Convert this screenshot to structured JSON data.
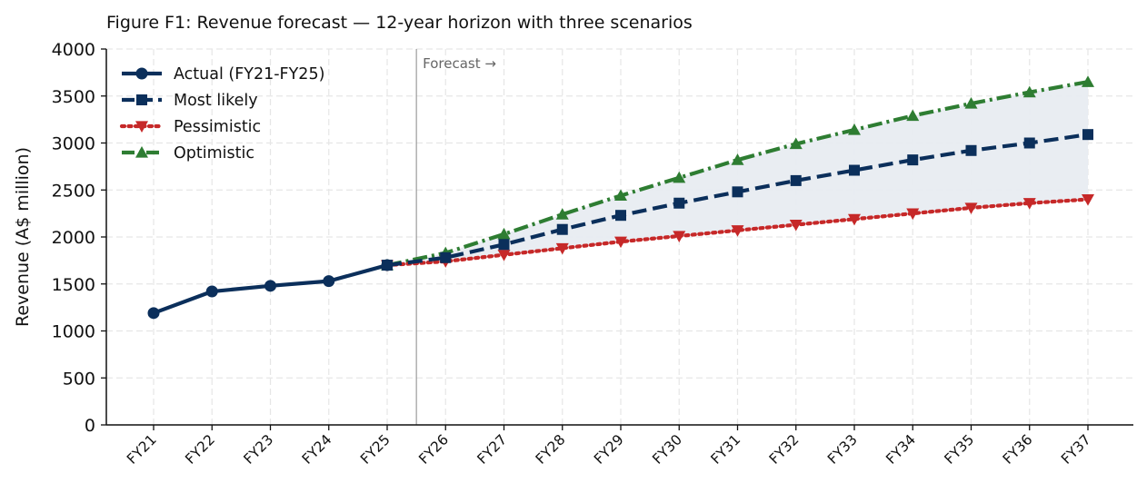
{
  "chart_data": {
    "type": "line",
    "title": "Figure F1: Revenue forecast — 12-year horizon with three scenarios",
    "ylabel": "Revenue (A$ million)",
    "xlabel": "",
    "ylim": [
      0,
      4000
    ],
    "yticks": [
      0,
      500,
      1000,
      1500,
      2000,
      2500,
      3000,
      3500,
      4000
    ],
    "categories": [
      "FY21",
      "FY22",
      "FY23",
      "FY24",
      "FY25",
      "FY26",
      "FY27",
      "FY28",
      "FY29",
      "FY30",
      "FY31",
      "FY32",
      "FY33",
      "FY34",
      "FY35",
      "FY36",
      "FY37"
    ],
    "grid": true,
    "legend_position": "top-left",
    "forecast_marker_label": "Forecast →",
    "series": [
      {
        "name": "Actual (FY21-FY25)",
        "color": "#0b2f5b",
        "line_style": "solid",
        "marker": "circle",
        "values": [
          1190,
          1420,
          1480,
          1530,
          1700,
          null,
          null,
          null,
          null,
          null,
          null,
          null,
          null,
          null,
          null,
          null,
          null
        ]
      },
      {
        "name": "Most likely",
        "color": "#0b2f5b",
        "line_style": "dashed",
        "marker": "square",
        "values": [
          null,
          null,
          null,
          null,
          1700,
          1780,
          1920,
          2080,
          2230,
          2360,
          2480,
          2600,
          2710,
          2820,
          2920,
          3000,
          3090
        ]
      },
      {
        "name": "Pessimistic",
        "color": "#c62828",
        "line_style": "dotted",
        "marker": "triangle-down",
        "values": [
          null,
          null,
          null,
          null,
          1700,
          1740,
          1810,
          1880,
          1950,
          2010,
          2070,
          2130,
          2190,
          2250,
          2310,
          2360,
          2400
        ]
      },
      {
        "name": "Optimistic",
        "color": "#2e7d32",
        "line_style": "dashdot",
        "marker": "triangle-up",
        "values": [
          null,
          null,
          null,
          null,
          1700,
          1830,
          2030,
          2240,
          2440,
          2630,
          2820,
          2990,
          3140,
          3290,
          3420,
          3540,
          3650
        ]
      }
    ],
    "band": {
      "between": [
        "Pessimistic",
        "Optimistic"
      ],
      "color": "#e8ecf1"
    }
  }
}
